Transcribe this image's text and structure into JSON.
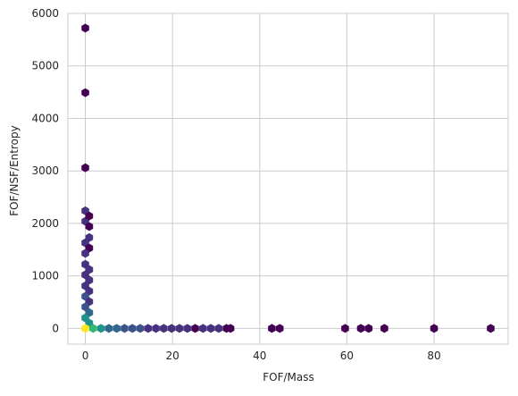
{
  "chart_data": {
    "type": "hexbin",
    "title": "",
    "xlabel": "FOF/Mass",
    "ylabel": "FOF/NSF/Entropy",
    "xlim": [
      -4,
      97
    ],
    "ylim": [
      -300,
      6000
    ],
    "xticks": [
      0,
      20,
      40,
      60,
      80
    ],
    "yticks": [
      0,
      1000,
      2000,
      3000,
      4000,
      5000,
      6000
    ],
    "grid": true,
    "colormap": "viridis",
    "colors": {
      "dark_purple": "#440154",
      "indigo": "#46327e",
      "blue_purple": "#3b528b",
      "blue": "#31688e",
      "teal": "#21918c",
      "green": "#35b779",
      "yellow": "#fde725",
      "grid": "#cccccc",
      "spine": "#cccccc"
    },
    "bins": [
      {
        "x": 0,
        "y": 5720,
        "color": "dark_purple"
      },
      {
        "x": 0,
        "y": 4490,
        "color": "dark_purple"
      },
      {
        "x": 0,
        "y": 3060,
        "color": "dark_purple"
      },
      {
        "x": 0,
        "y": 2240,
        "color": "indigo"
      },
      {
        "x": 0,
        "y": 2040,
        "color": "indigo"
      },
      {
        "x": 0.9,
        "y": 2140,
        "color": "dark_purple"
      },
      {
        "x": 0.9,
        "y": 1940,
        "color": "dark_purple"
      },
      {
        "x": 0.9,
        "y": 1730,
        "color": "indigo"
      },
      {
        "x": 0,
        "y": 1630,
        "color": "indigo"
      },
      {
        "x": 0.9,
        "y": 1530,
        "color": "dark_purple"
      },
      {
        "x": 0,
        "y": 1430,
        "color": "indigo"
      },
      {
        "x": 0,
        "y": 1220,
        "color": "indigo"
      },
      {
        "x": 0.9,
        "y": 1120,
        "color": "indigo"
      },
      {
        "x": 0,
        "y": 1020,
        "color": "indigo"
      },
      {
        "x": 0.9,
        "y": 920,
        "color": "indigo"
      },
      {
        "x": 0,
        "y": 810,
        "color": "indigo"
      },
      {
        "x": 0.9,
        "y": 710,
        "color": "indigo"
      },
      {
        "x": 0,
        "y": 610,
        "color": "blue_purple"
      },
      {
        "x": 0.9,
        "y": 510,
        "color": "indigo"
      },
      {
        "x": 0,
        "y": 410,
        "color": "blue_purple"
      },
      {
        "x": 0.9,
        "y": 300,
        "color": "blue"
      },
      {
        "x": 0,
        "y": 200,
        "color": "teal"
      },
      {
        "x": 0.9,
        "y": 100,
        "color": "teal"
      },
      {
        "x": 0,
        "y": 0,
        "color": "yellow"
      },
      {
        "x": 1.8,
        "y": 0,
        "color": "green"
      },
      {
        "x": 3.6,
        "y": 0,
        "color": "teal"
      },
      {
        "x": 5.4,
        "y": 0,
        "color": "blue"
      },
      {
        "x": 7.2,
        "y": 0,
        "color": "blue"
      },
      {
        "x": 9.0,
        "y": 0,
        "color": "blue_purple"
      },
      {
        "x": 10.8,
        "y": 0,
        "color": "blue_purple"
      },
      {
        "x": 12.6,
        "y": 0,
        "color": "blue_purple"
      },
      {
        "x": 14.4,
        "y": 0,
        "color": "indigo"
      },
      {
        "x": 16.2,
        "y": 0,
        "color": "indigo"
      },
      {
        "x": 18.0,
        "y": 0,
        "color": "indigo"
      },
      {
        "x": 19.8,
        "y": 0,
        "color": "indigo"
      },
      {
        "x": 21.6,
        "y": 0,
        "color": "indigo"
      },
      {
        "x": 23.4,
        "y": 0,
        "color": "indigo"
      },
      {
        "x": 25.2,
        "y": 0,
        "color": "dark_purple"
      },
      {
        "x": 27.0,
        "y": 0,
        "color": "indigo"
      },
      {
        "x": 28.8,
        "y": 0,
        "color": "indigo"
      },
      {
        "x": 30.6,
        "y": 0,
        "color": "indigo"
      },
      {
        "x": 32.4,
        "y": 0,
        "color": "dark_purple"
      },
      {
        "x": 33.3,
        "y": 0,
        "color": "dark_purple"
      },
      {
        "x": 42.8,
        "y": 0,
        "color": "dark_purple"
      },
      {
        "x": 44.6,
        "y": 0,
        "color": "dark_purple"
      },
      {
        "x": 59.6,
        "y": 0,
        "color": "dark_purple"
      },
      {
        "x": 63.2,
        "y": 0,
        "color": "dark_purple"
      },
      {
        "x": 65.0,
        "y": 0,
        "color": "dark_purple"
      },
      {
        "x": 68.6,
        "y": 0,
        "color": "dark_purple"
      },
      {
        "x": 80.0,
        "y": 0,
        "color": "dark_purple"
      },
      {
        "x": 93.0,
        "y": 0,
        "color": "dark_purple"
      }
    ]
  }
}
